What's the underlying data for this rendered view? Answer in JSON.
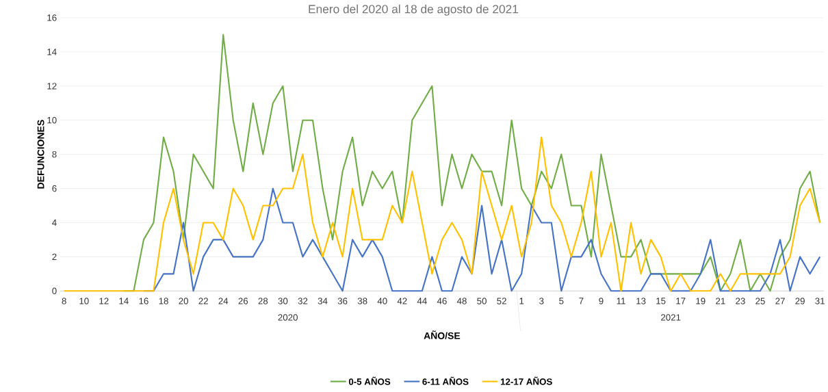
{
  "chart_data": {
    "type": "line",
    "title": "Enero del 2020 al 18 de agosto de 2021",
    "xlabel": "AÑO/SE",
    "ylabel": "DEFUNCIONES",
    "categories": [
      "8",
      null,
      "10",
      null,
      "12",
      null,
      "14",
      null,
      "16",
      null,
      "18",
      null,
      "20",
      null,
      "22",
      null,
      "24",
      null,
      "26",
      null,
      "28",
      null,
      "30",
      null,
      "32",
      null,
      "34",
      null,
      "36",
      null,
      "38",
      null,
      "40",
      null,
      "42",
      null,
      "44",
      null,
      "46",
      null,
      "48",
      null,
      "50",
      null,
      "52",
      null,
      "1",
      null,
      "3",
      null,
      "5",
      null,
      "7",
      null,
      "9",
      null,
      "11",
      null,
      "13",
      null,
      "15",
      null,
      "17",
      null,
      "19",
      null,
      "21",
      null,
      "23",
      null,
      "25",
      null,
      "27",
      null,
      "29",
      null,
      "31"
    ],
    "series": [
      {
        "name": "0-5 AÑOS",
        "color": "#70ad47",
        "values": [
          null,
          null,
          null,
          null,
          null,
          null,
          0,
          0,
          3,
          4,
          9,
          7,
          3,
          8,
          7,
          6,
          15,
          10,
          7,
          11,
          8,
          11,
          12,
          7,
          10,
          10,
          6,
          3,
          7,
          9,
          5,
          7,
          6,
          7,
          4,
          10,
          11,
          12,
          5,
          8,
          6,
          8,
          7,
          7,
          5,
          10,
          6,
          5,
          7,
          6,
          8,
          5,
          5,
          2,
          8,
          5,
          2,
          2,
          3,
          1,
          1,
          1,
          1,
          1,
          1,
          2,
          0,
          1,
          3,
          0,
          1,
          0,
          2,
          3,
          6,
          7,
          4
        ]
      },
      {
        "name": "6-11 AÑOS",
        "color": "#4472c4",
        "values": [
          null,
          null,
          null,
          null,
          null,
          null,
          null,
          null,
          0,
          0,
          1,
          1,
          4,
          0,
          2,
          3,
          3,
          2,
          2,
          2,
          3,
          6,
          4,
          4,
          2,
          3,
          2,
          1,
          0,
          3,
          2,
          3,
          2,
          0,
          0,
          0,
          0,
          2,
          0,
          0,
          2,
          1,
          5,
          1,
          3,
          0,
          1,
          5,
          4,
          4,
          0,
          2,
          2,
          3,
          1,
          0,
          0,
          0,
          0,
          1,
          1,
          0,
          0,
          0,
          1,
          3,
          0,
          0,
          0,
          0,
          0,
          1,
          3,
          0,
          2,
          1,
          2
        ]
      },
      {
        "name": "12-17 AÑOS",
        "color": "#ffc000",
        "values": [
          0,
          0,
          0,
          0,
          0,
          0,
          0,
          0,
          0,
          0,
          4,
          6,
          3,
          1,
          4,
          4,
          3,
          6,
          5,
          3,
          5,
          5,
          6,
          6,
          8,
          4,
          2,
          4,
          2,
          6,
          3,
          3,
          3,
          5,
          4,
          7,
          4,
          1,
          3,
          4,
          3,
          1,
          7,
          5,
          3,
          5,
          2,
          4,
          9,
          5,
          4,
          2,
          4,
          7,
          2,
          4,
          0,
          4,
          1,
          3,
          2,
          0,
          1,
          0,
          0,
          0,
          1,
          0,
          1,
          1,
          1,
          1,
          1,
          2,
          5,
          6,
          4
        ]
      }
    ],
    "ylim": [
      0,
      16
    ],
    "yticks": [
      0,
      2,
      4,
      6,
      8,
      10,
      12,
      14,
      16
    ],
    "grid": "y",
    "legend": "bottom",
    "annotations": [
      "2020",
      "2021"
    ]
  }
}
